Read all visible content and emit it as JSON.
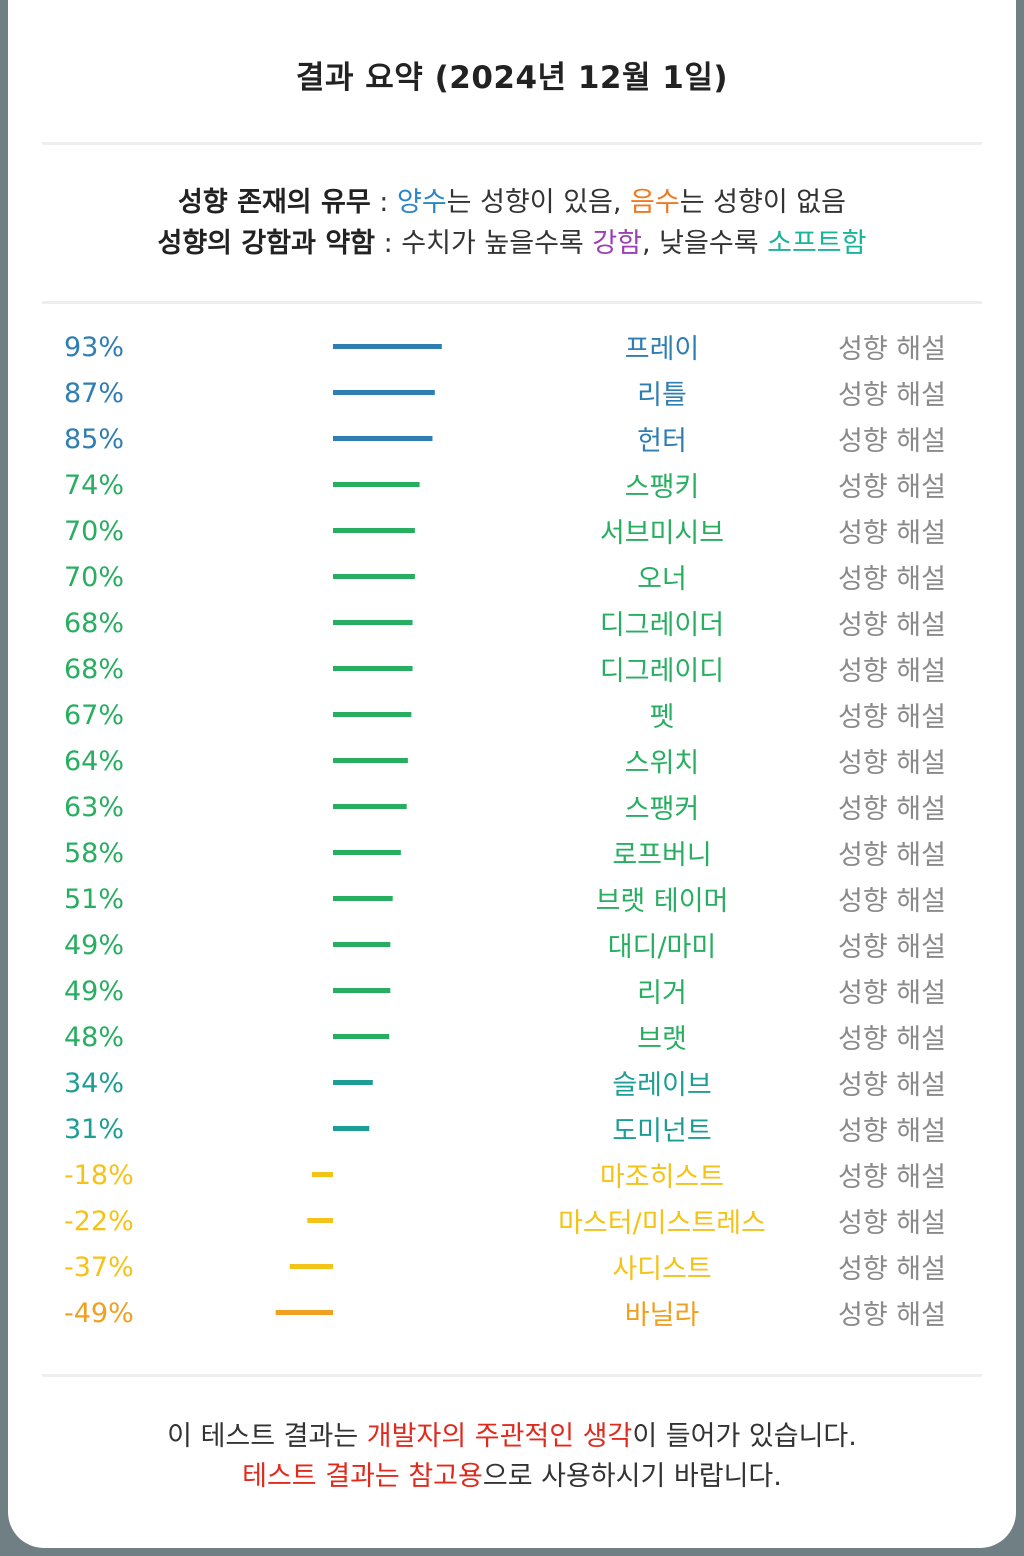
{
  "title": "결과 요약 (2024년 12월 1일)",
  "legend": {
    "line1": {
      "label": "성향 존재의 유무",
      "sep": " : ",
      "pos_word": "양수",
      "pos_rest": "는 성향이 있음, ",
      "neg_word": "음수",
      "neg_rest": "는 성향이 없음"
    },
    "line2": {
      "label": "성향의 강함과 약함",
      "sep": " : ",
      "text1": "수치가 높을수록 ",
      "strong_word": "강함",
      "text2": ", 낮을수록 ",
      "soft_word": "소프트함"
    }
  },
  "colors": {
    "blue": "#2f7eb3",
    "green": "#27ae60",
    "teal": "#1d9e94",
    "yellow": "#f5c217",
    "orange": "#f0a020",
    "muted": "#8a8a8a"
  },
  "chart_data": {
    "type": "bar",
    "orientation": "horizontal",
    "value_unit": "%",
    "detail_label": "성향 해설",
    "categories": [
      "프레이",
      "리틀",
      "헌터",
      "스팽키",
      "서브미시브",
      "오너",
      "디그레이더",
      "디그레이디",
      "펫",
      "스위치",
      "스팽커",
      "로프버니",
      "브랫 테이머",
      "대디/마미",
      "리거",
      "브랫",
      "슬레이브",
      "도미넌트",
      "마조히스트",
      "마스터/미스트레스",
      "사디스트",
      "바닐라"
    ],
    "values": [
      93,
      87,
      85,
      74,
      70,
      70,
      68,
      68,
      67,
      64,
      63,
      58,
      51,
      49,
      49,
      48,
      34,
      31,
      -18,
      -22,
      -37,
      -49
    ],
    "color_groups": [
      "blue",
      "blue",
      "blue",
      "green",
      "green",
      "green",
      "green",
      "green",
      "green",
      "green",
      "green",
      "green",
      "green",
      "green",
      "green",
      "green",
      "teal",
      "teal",
      "yellow",
      "yellow",
      "yellow",
      "orange"
    ]
  },
  "footer": {
    "line1": {
      "text1": "이 테스트 결과는 ",
      "highlight": "개발자의 주관적인 생각",
      "text2": "이 들어가 있습니다."
    },
    "line2": {
      "highlight": "테스트 결과는 참고용",
      "text": "으로 사용하시기 바랍니다."
    }
  }
}
